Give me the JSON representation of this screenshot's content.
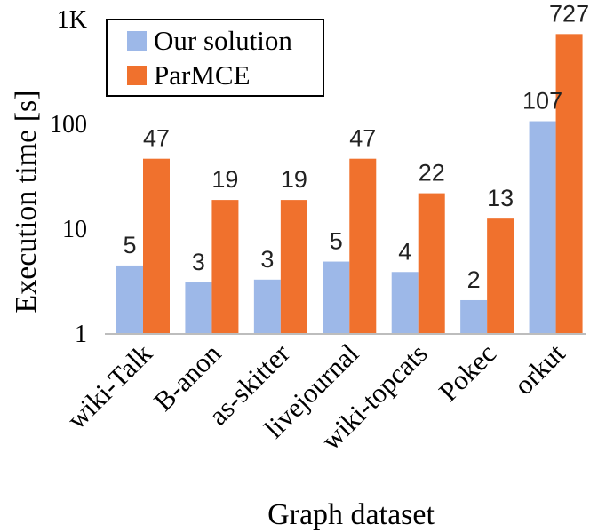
{
  "chart_data": {
    "type": "bar",
    "xlabel": "Graph dataset",
    "ylabel": "Execution time [s]",
    "yscale": "log",
    "ylim": [
      1,
      1000
    ],
    "yticks": [
      {
        "value": 1,
        "label": "1"
      },
      {
        "value": 10,
        "label": "10"
      },
      {
        "value": 100,
        "label": "100"
      },
      {
        "value": 1000,
        "label": "1K"
      }
    ],
    "grid": false,
    "legend_position": "top-left",
    "categories": [
      "wiki-Talk",
      "B-anon",
      "as-skitter",
      "livejournal",
      "wiki-topcats",
      "Pokec",
      "orkut"
    ],
    "series": [
      {
        "name": "Our solution",
        "color": "#9db8e8",
        "values": [
          4.5,
          3.1,
          3.3,
          4.9,
          3.9,
          2.1,
          107
        ],
        "labels": [
          "5",
          "3",
          "3",
          "5",
          "4",
          "2",
          "107"
        ]
      },
      {
        "name": "ParMCE",
        "color": "#f0712d",
        "values": [
          47,
          19,
          19,
          47,
          22,
          12.6,
          727
        ],
        "labels": [
          "47",
          "19",
          "19",
          "47",
          "22",
          "13",
          "727"
        ]
      }
    ]
  }
}
